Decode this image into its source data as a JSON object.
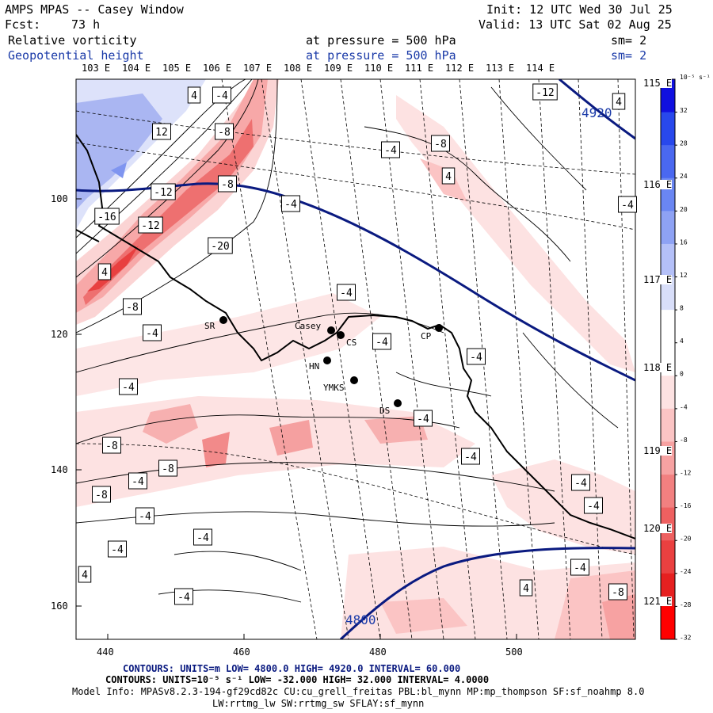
{
  "header": {
    "title": "AMPS MPAS -- Casey Window",
    "init": "Init: 12 UTC Wed 30 Jul 25",
    "fcst_label": "Fcst:",
    "fcst_value": "73 h",
    "valid": "Valid: 13 UTC Sat 02 Aug 25",
    "field1": "Relative vorticity",
    "field1_level": "at pressure =  500 hPa",
    "field1_sm": "sm= 2",
    "field2": "Geopotential height",
    "field2_level": "at pressure =  500 hPa",
    "field2_sm": "sm= 2"
  },
  "axes": {
    "top_lon_labels": [
      "103 E",
      "104 E",
      "105 E",
      "106 E",
      "107 E",
      "108 E",
      "109 E",
      "110 E",
      "111 E",
      "112 E",
      "113 E",
      "114 E"
    ],
    "right_lon_labels": [
      "115 E",
      "116 E",
      "117 E",
      "118 E",
      "119 E",
      "120 E",
      "121 E"
    ],
    "x_ticks": [
      "440",
      "460",
      "480",
      "500"
    ],
    "y_ticks": [
      "100",
      "120",
      "140",
      "160"
    ]
  },
  "colorbar": {
    "units": "10⁻⁵ s⁻¹",
    "labels": [
      "32",
      "28",
      "24",
      "20",
      "16",
      "12",
      "8",
      "4",
      "0",
      "-4",
      "-8",
      "-12",
      "-16",
      "-20",
      "-24",
      "-28",
      "-32"
    ],
    "colors": [
      "#1010e0",
      "#2848ec",
      "#4a68f0",
      "#6a86f2",
      "#8ea2f4",
      "#b4c0f8",
      "#d8def9",
      "#ffffff",
      "#ffffff",
      "#fde2e2",
      "#fbc4c4",
      "#f7a2a2",
      "#f28080",
      "#ee6060",
      "#ea4040",
      "#e62020",
      "#ff0000"
    ]
  },
  "stations": [
    {
      "name": "Casey"
    },
    {
      "name": "CS"
    },
    {
      "name": "CP"
    },
    {
      "name": "SR"
    },
    {
      "name": "HN"
    },
    {
      "name": "YMKS"
    },
    {
      "name": "DS"
    }
  ],
  "height_labels": [
    "4920",
    "4800"
  ],
  "vorticity_labels": [
    "4",
    "-4",
    "12",
    "-8",
    "-12",
    "-8",
    "-4",
    "-4",
    "-8",
    "4",
    "-16",
    "-12",
    "-20",
    "4",
    "-8",
    "-4",
    "-4",
    "-4",
    "-4",
    "-4",
    "-8",
    "-8",
    "-4",
    "-4",
    "-8",
    "-4",
    "-4",
    "-4",
    "-4",
    "-4",
    "-4",
    "4",
    "-4",
    "-4",
    "4",
    "-8",
    "-12",
    "4",
    "-4"
  ],
  "footer": {
    "line1": "CONTOURS:  UNITS=m  LOW=  4800.0          HIGH=  4920.0          INTERVAL=   60.000",
    "line2": "CONTOURS:  UNITS=10⁻⁵ s⁻¹  LOW= -32.000          HIGH=  32.000          INTERVAL=   4.0000",
    "line3": "Model Info: MPASv8.2.3-194-gf29cd82c CU:cu_grell_freitas PBL:bl_mynn MP:mp_thompson SF:sf_noahmp 8.0",
    "line4": "LW:rrtmg_lw SW:rrtmg_sw SFLAY:sf_mynn"
  }
}
